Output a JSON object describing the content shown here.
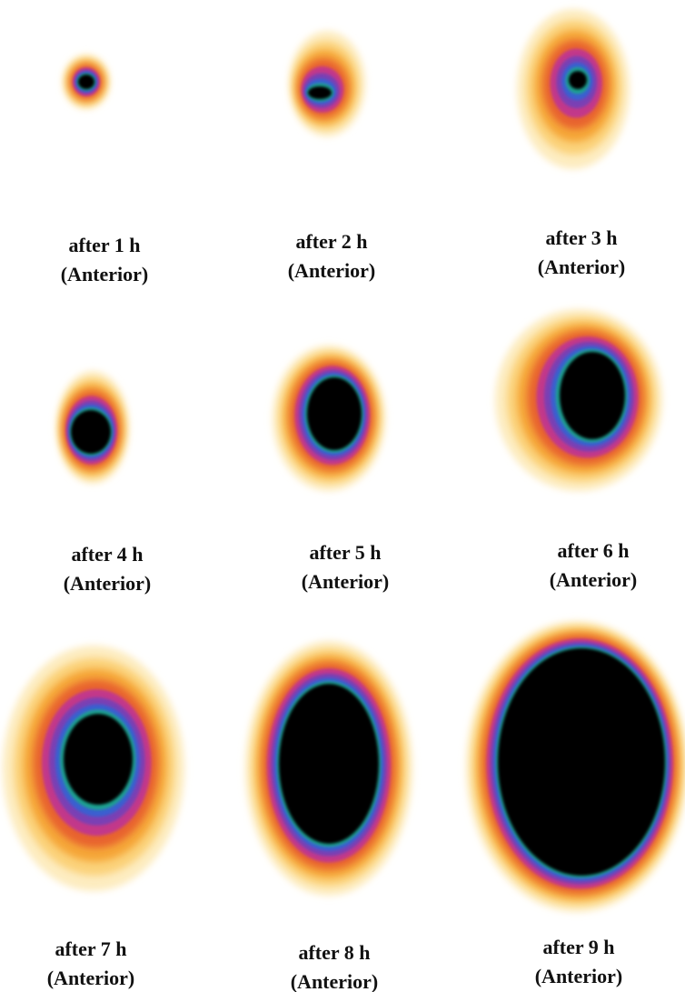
{
  "panels": [
    {
      "time": "after 1 h",
      "view": "(Anterior)"
    },
    {
      "time": "after 2 h",
      "view": "(Anterior)"
    },
    {
      "time": "after 3 h",
      "view": "(Anterior)"
    },
    {
      "time": "after 4 h",
      "view": "(Anterior)"
    },
    {
      "time": "after 5 h",
      "view": "(Anterior)"
    },
    {
      "time": "after 6 h",
      "view": "(Anterior)"
    },
    {
      "time": "after 7 h",
      "view": "(Anterior)"
    },
    {
      "time": "after 8 h",
      "view": "(Anterior)"
    },
    {
      "time": "after 9 h",
      "view": "(Anterior)"
    }
  ]
}
